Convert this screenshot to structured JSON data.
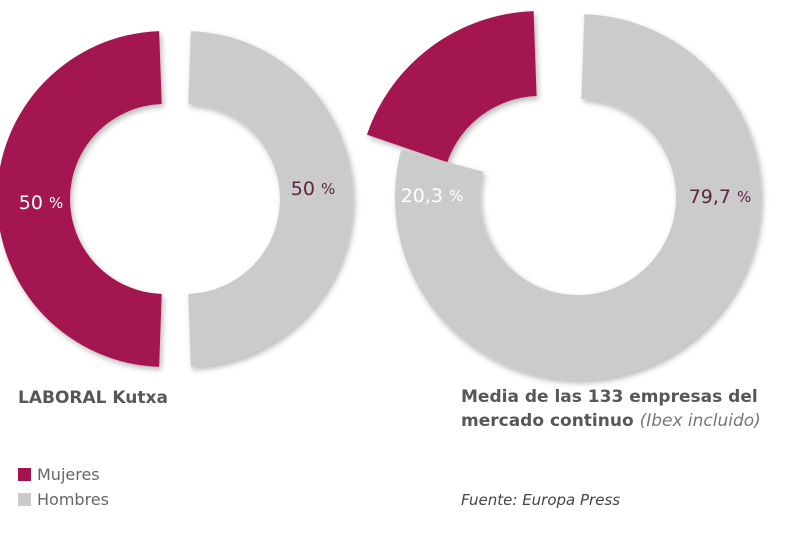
{
  "colors": {
    "mujeres": "#a3134f",
    "hombres": "#cbcbcb"
  },
  "chart_data": [
    {
      "type": "pie",
      "variant": "donut",
      "title": "LABORAL Kutxa",
      "categories": [
        "Mujeres",
        "Hombres"
      ],
      "values": [
        50,
        50
      ],
      "labels": [
        "50",
        "50"
      ],
      "unit": "%"
    },
    {
      "type": "pie",
      "variant": "donut",
      "title": "Media de las 133 empresas del mercado continuo",
      "title_note": "(Ibex incluido)",
      "categories": [
        "Mujeres",
        "Hombres"
      ],
      "values": [
        20.3,
        79.7
      ],
      "labels": [
        "20,3",
        "79,7"
      ],
      "unit": "%"
    }
  ],
  "legend": {
    "placement": "bottom-left",
    "items": [
      {
        "label": "Mujeres"
      },
      {
        "label": "Hombres"
      }
    ]
  },
  "source": "Fuente: Europa Press"
}
